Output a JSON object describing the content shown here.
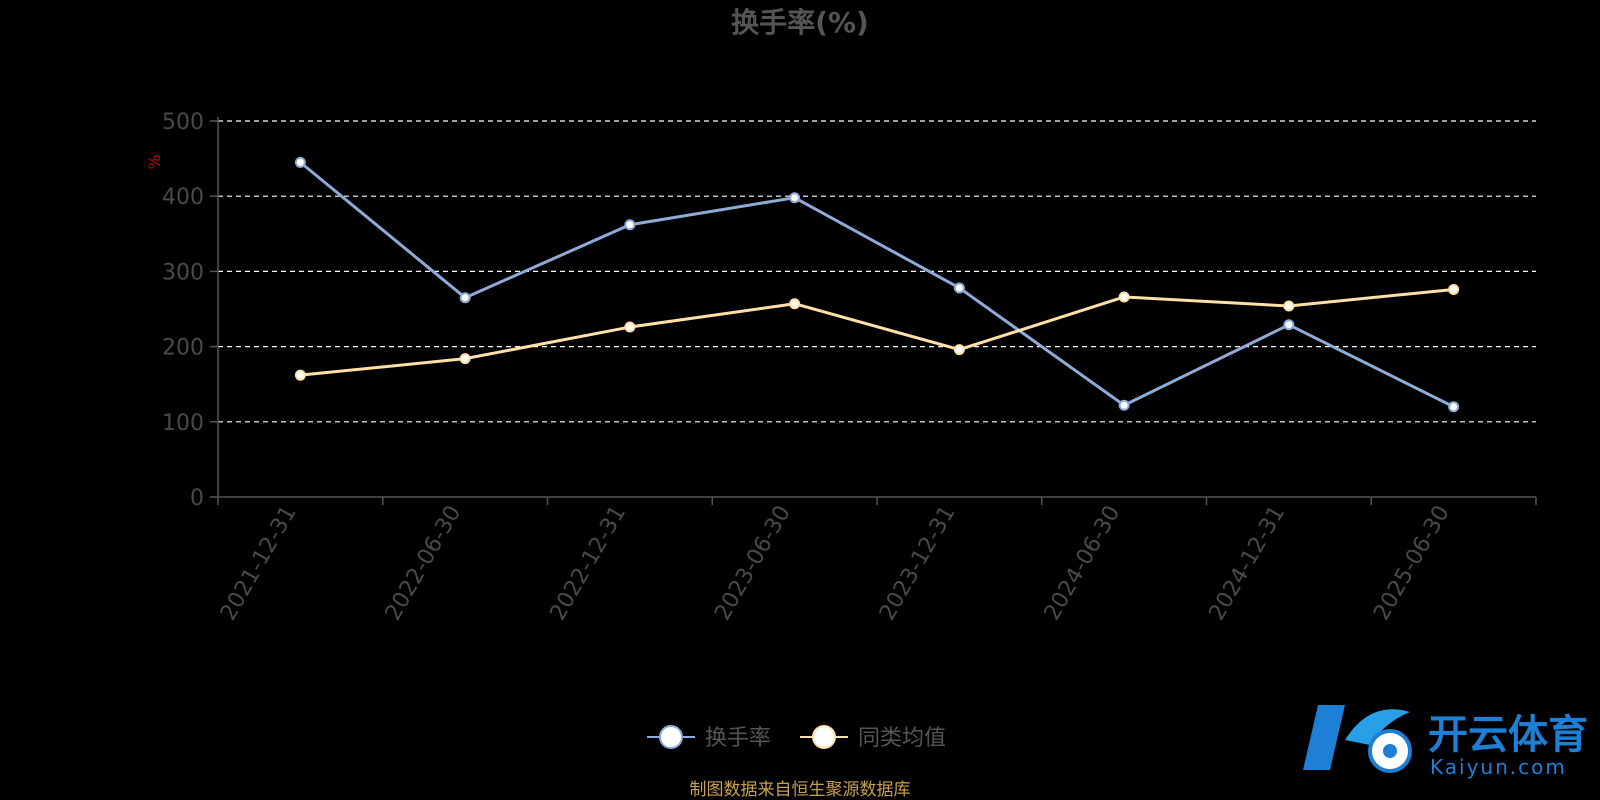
{
  "chart_data": {
    "type": "line",
    "title": "换手率(%)",
    "ylabel": "%",
    "ylim": [
      0,
      500
    ],
    "yticks": [
      0,
      100,
      200,
      300,
      400,
      500
    ],
    "grid": true,
    "legend_placement": "bottom",
    "categories": [
      "2021-12-31",
      "2022-06-30",
      "2022-12-31",
      "2023-06-30",
      "2023-12-31",
      "2024-06-30",
      "2024-12-31",
      "2025-06-30"
    ],
    "series": [
      {
        "name": "换手率",
        "color": "#8fa9d9",
        "values": [
          445,
          265,
          362,
          398,
          278,
          122,
          229,
          120
        ]
      },
      {
        "name": "同类均值",
        "color": "#ffe0a8",
        "values": [
          162,
          184,
          226,
          257,
          196,
          266,
          254,
          276
        ]
      }
    ]
  },
  "footer": {
    "source": "制图数据来自恒生聚源数据库"
  },
  "logo": {
    "text": "开云体育",
    "subtext": "Kaiyun.com"
  }
}
